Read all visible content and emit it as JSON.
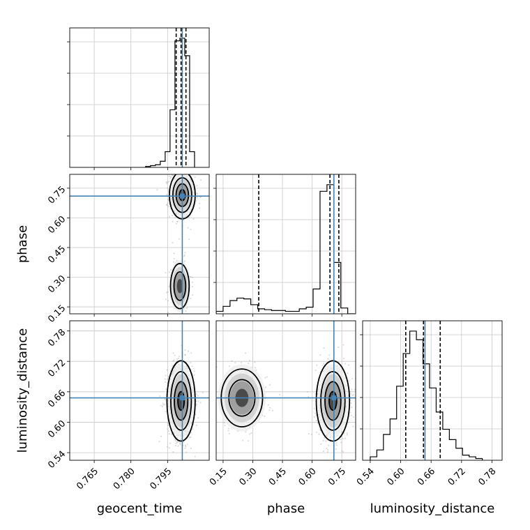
{
  "chart_data": {
    "type": "corner",
    "parameters": [
      "geocent_time",
      "phase",
      "luminosity_distance"
    ],
    "truths": {
      "geocent_time": 0.801,
      "phase": 0.71,
      "luminosity_distance": 0.648
    },
    "colors": {
      "truth": "#4682b4",
      "hist": "#000000",
      "grid": "#c8c8c8",
      "points": "#9a9a9a"
    },
    "ranges": {
      "geocent_time": [
        0.755,
        0.812
      ],
      "phase": [
        0.115,
        0.82
      ],
      "luminosity_distance": [
        0.525,
        0.8
      ]
    },
    "ticks": {
      "geocent_time": {
        "values": [
          0.765,
          0.78,
          0.795
        ],
        "labels": [
          "0.765",
          "0.780",
          "0.795"
        ]
      },
      "phase": {
        "values": [
          0.15,
          0.3,
          0.45,
          0.6,
          0.75
        ],
        "labels": [
          "0.15",
          "0.30",
          "0.45",
          "0.60",
          "0.75"
        ]
      },
      "luminosity_distance": {
        "values": [
          0.54,
          0.6,
          0.66,
          0.72,
          0.78
        ],
        "labels": [
          "0.54",
          "0.60",
          "0.66",
          "0.72",
          "0.78"
        ]
      }
    },
    "grid": true,
    "histograms": {
      "geocent_time": {
        "bin_edges": [
          0.786,
          0.788,
          0.79,
          0.792,
          0.794,
          0.796,
          0.798,
          0.8,
          0.802,
          0.804,
          0.806
        ],
        "counts": [
          1,
          2,
          3,
          7,
          18,
          66,
          145,
          148,
          128,
          18
        ],
        "quantiles": [
          0.7985,
          0.8005,
          0.8025
        ]
      },
      "phase": {
        "bin_edges": [
          0.115,
          0.15,
          0.185,
          0.22,
          0.255,
          0.29,
          0.325,
          0.36,
          0.395,
          0.43,
          0.465,
          0.5,
          0.535,
          0.57,
          0.605,
          0.64,
          0.675,
          0.71,
          0.745,
          0.78,
          0.815
        ],
        "counts": [
          3,
          9,
          16,
          19,
          18,
          11,
          6,
          5,
          4,
          4,
          3,
          3,
          6,
          8,
          30,
          148,
          156,
          62,
          7,
          0
        ],
        "quantiles": [
          0.33,
          0.69,
          0.735
        ]
      },
      "luminosity_distance": {
        "bin_edges": [
          0.54,
          0.553,
          0.566,
          0.579,
          0.592,
          0.605,
          0.618,
          0.631,
          0.644,
          0.657,
          0.67,
          0.683,
          0.696,
          0.709,
          0.722,
          0.735,
          0.748,
          0.761
        ],
        "counts": [
          2,
          6,
          15,
          24,
          43,
          62,
          75,
          70,
          56,
          42,
          28,
          18,
          12,
          7,
          3,
          2,
          1
        ],
        "quantiles": [
          0.61,
          0.645,
          0.678
        ]
      }
    },
    "scatter_modes": {
      "phase_vs_geocent_time": [
        {
          "x": 0.801,
          "y": 0.715,
          "sx": 0.0022,
          "sy": 0.05,
          "w": 0.78
        },
        {
          "x": 0.8,
          "y": 0.255,
          "sx": 0.002,
          "sy": 0.06,
          "w": 0.22
        }
      ],
      "luminosity_distance_vs_geocent_time": [
        {
          "x": 0.8005,
          "y": 0.642,
          "sx": 0.0024,
          "sy": 0.033,
          "w": 1.0
        }
      ],
      "luminosity_distance_vs_phase": [
        {
          "x": 0.705,
          "y": 0.642,
          "sx": 0.035,
          "sy": 0.033,
          "w": 0.75
        },
        {
          "x": 0.245,
          "y": 0.648,
          "sx": 0.055,
          "sy": 0.03,
          "w": 0.25
        }
      ]
    }
  }
}
